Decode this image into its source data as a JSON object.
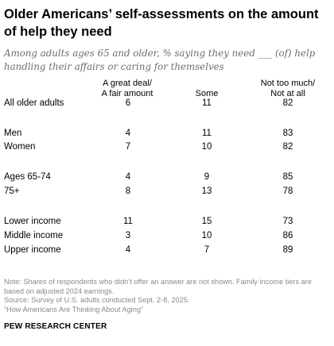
{
  "chart_data": {
    "type": "table",
    "title": "Older Americans’ self-assessments on the amount of help they need",
    "subtitle": "Among adults ages 65 and older, % saying they need ___ (of) help handling their affairs or caring for themselves",
    "columns": [
      {
        "line1": "A great deal/",
        "line2": "A fair amount"
      },
      {
        "line1": "",
        "line2": "Some"
      },
      {
        "line1": "Not too much/",
        "line2": "Not at all"
      }
    ],
    "rows": [
      {
        "label": "All older adults",
        "values": [
          "6",
          "11",
          "82"
        ]
      },
      {
        "label": "Men",
        "values": [
          "4",
          "11",
          "83"
        ]
      },
      {
        "label": "Women",
        "values": [
          "7",
          "10",
          "82"
        ]
      },
      {
        "label": "Ages 65-74",
        "values": [
          "4",
          "9",
          "85"
        ]
      },
      {
        "label": "75+",
        "values": [
          "8",
          "13",
          "78"
        ]
      },
      {
        "label": "Lower income",
        "values": [
          "11",
          "15",
          "73"
        ]
      },
      {
        "label": "Middle income",
        "values": [
          "3",
          "10",
          "86"
        ]
      },
      {
        "label": "Upper income",
        "values": [
          "4",
          "7",
          "89"
        ]
      }
    ]
  },
  "notes": {
    "note": "Note: Shares of respondents who didn’t offer an answer are not shown. Family income tiers are based on adjusted 2024 earnings.",
    "source": "Source: Survey of U.S. adults conducted Sept. 2-8, 2025.",
    "report": "“How Americans Are Thinking About Aging”"
  },
  "brand": "PEW RESEARCH CENTER",
  "colors": {
    "text": "#000000",
    "subtitle": "#6d6d6d",
    "notes": "#8a8a8a"
  }
}
